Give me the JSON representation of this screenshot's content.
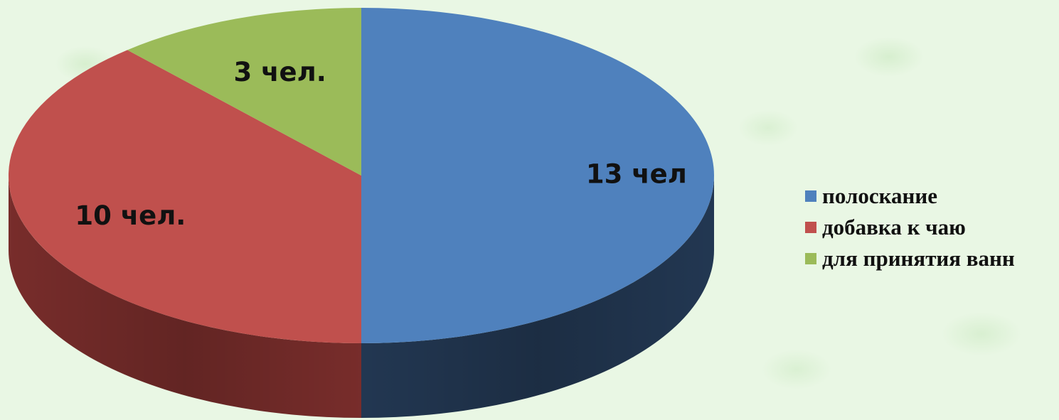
{
  "chart_data": {
    "type": "pie",
    "title": "",
    "categories": [
      "полоскание",
      "добавка к чаю",
      "для принятия ванн"
    ],
    "values": [
      13,
      10,
      3
    ],
    "data_labels": [
      "13 чел",
      "10 чел.",
      "3 чел."
    ],
    "colors": [
      "#4f81bd",
      "#c0504d",
      "#9bbb59"
    ],
    "side_colors": [
      "#243a56",
      "#7e2f2d",
      "#5d7a33"
    ],
    "legend_placement": "right",
    "three_d": true
  }
}
